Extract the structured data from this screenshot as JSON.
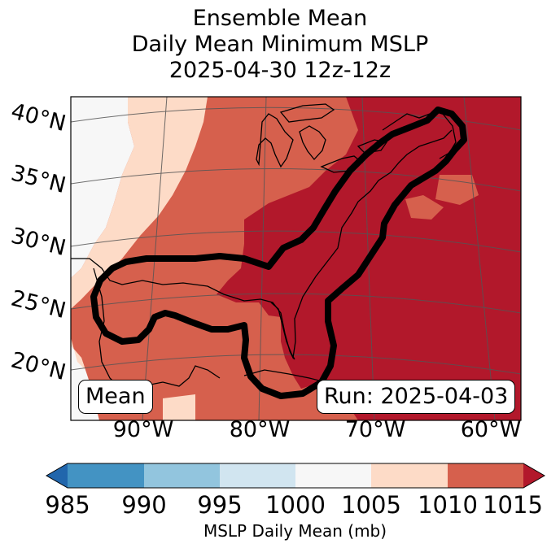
{
  "title": {
    "line1": "Ensemble Mean",
    "line2": "Daily Mean Minimum MSLP",
    "line3": "2025-04-30 12z-12z"
  },
  "map": {
    "lat_labels": [
      "40°N",
      "35°N",
      "30°N",
      "25°N",
      "20°N"
    ],
    "lon_labels": [
      "90°W",
      "80°W",
      "70°W",
      "60°W"
    ],
    "mean_box": "Mean",
    "run_box": "Run: 2025-04-03",
    "colors": {
      "lt1000": "#f7f7f7",
      "1005_1010": "#fddbc7",
      "1010_1015": "#d6604d",
      "gt1015": "#b2182b",
      "contour": "#000000",
      "coast": "#000000",
      "grid": "#555555"
    }
  },
  "colorbar": {
    "label": "MSLP Daily Mean (mb)",
    "ticks": [
      "985",
      "990",
      "995",
      "1000",
      "1005",
      "1010",
      "1015"
    ],
    "colors": {
      "under": "#2166ac",
      "985_990": "#4393c3",
      "990_995": "#92c5de",
      "995_1000": "#d1e5f0",
      "1000_1005": "#f7f7f7",
      "1005_1010": "#fddbc7",
      "1010_1015": "#d6604d",
      "over": "#b2182b"
    }
  }
}
